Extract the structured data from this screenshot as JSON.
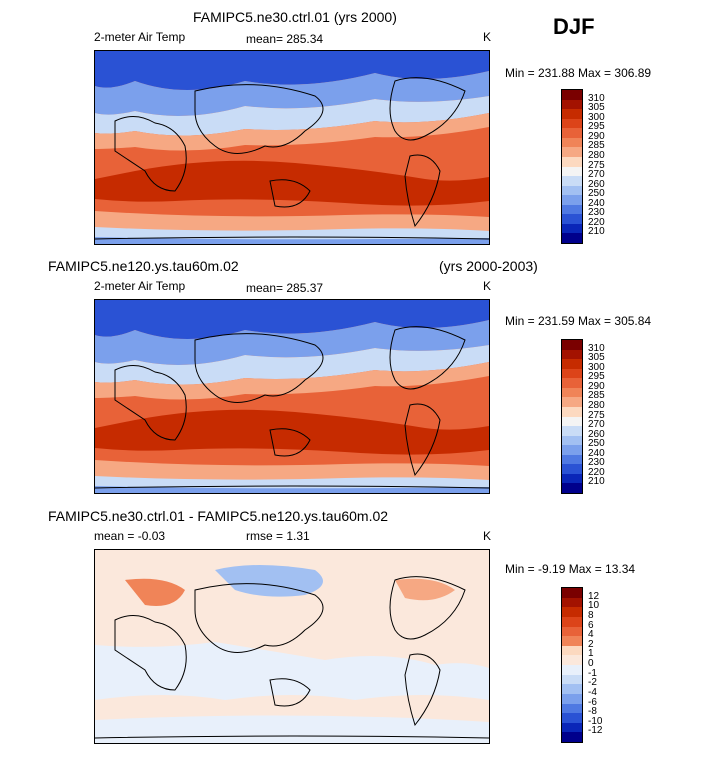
{
  "season": "DJF",
  "panels": [
    {
      "title": "FAMIPC5.ne30.ctrl.01 (yrs 2000)",
      "title_right": "",
      "variable": "2-meter Air Temp",
      "stat1": "mean= 285.34",
      "stat2": "",
      "units": "K",
      "minmax": "Min = 231.88 Max = 306.89",
      "levels": [
        "310",
        "305",
        "300",
        "295",
        "290",
        "285",
        "280",
        "275",
        "270",
        "260",
        "250",
        "240",
        "230",
        "220",
        "210"
      ],
      "colors": [
        "#7a0000",
        "#a31200",
        "#c62b00",
        "#dc4419",
        "#e86238",
        "#f08458",
        "#f6a883",
        "#fcd9c0",
        "#f4f4f4",
        "#c9dcf6",
        "#a2c0f2",
        "#7ba0ec",
        "#4f79e2",
        "#2a52d4",
        "#0a26b8",
        "#00008c"
      ]
    },
    {
      "title": "FAMIPC5.ne120.ys.tau60m.02",
      "title_right": "(yrs 2000-2003)",
      "variable": "2-meter Air Temp",
      "stat1": "mean= 285.37",
      "stat2": "",
      "units": "K",
      "minmax": "Min = 231.59 Max = 305.84",
      "levels": [
        "310",
        "305",
        "300",
        "295",
        "290",
        "285",
        "280",
        "275",
        "270",
        "260",
        "250",
        "240",
        "230",
        "220",
        "210"
      ],
      "colors": [
        "#7a0000",
        "#a31200",
        "#c62b00",
        "#dc4419",
        "#e86238",
        "#f08458",
        "#f6a883",
        "#fcd9c0",
        "#f4f4f4",
        "#c9dcf6",
        "#a2c0f2",
        "#7ba0ec",
        "#4f79e2",
        "#2a52d4",
        "#0a26b8",
        "#00008c"
      ]
    },
    {
      "title": "FAMIPC5.ne30.ctrl.01 - FAMIPC5.ne120.ys.tau60m.02",
      "title_right": "",
      "variable": "mean =  -0.03",
      "stat1": "rmse =   1.31",
      "stat2": "",
      "units": "K",
      "minmax": "Min =  -9.19 Max =  13.34",
      "levels": [
        "12",
        "10",
        "8",
        "6",
        "4",
        "2",
        "1",
        "0",
        "-1",
        "-2",
        "-4",
        "-6",
        "-8",
        "-10",
        "-12"
      ],
      "colors": [
        "#7a0000",
        "#a31200",
        "#c62b00",
        "#dc4419",
        "#e86238",
        "#f08458",
        "#fcd9c0",
        "#fbe8dc",
        "#e8f0fb",
        "#c9dcf6",
        "#a2c0f2",
        "#7ba0ec",
        "#4f79e2",
        "#2a52d4",
        "#0a26b8",
        "#00008c"
      ]
    }
  ]
}
